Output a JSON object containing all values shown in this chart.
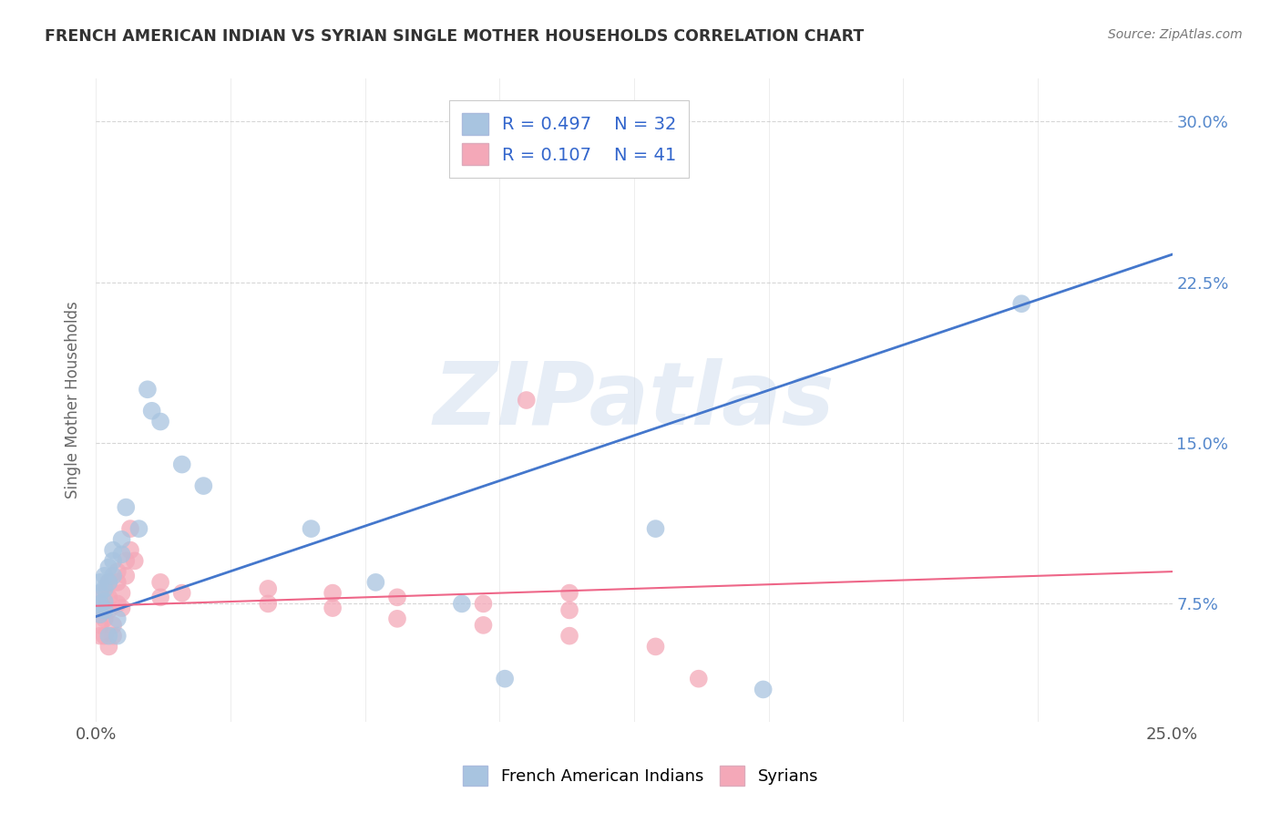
{
  "title": "FRENCH AMERICAN INDIAN VS SYRIAN SINGLE MOTHER HOUSEHOLDS CORRELATION CHART",
  "source": "Source: ZipAtlas.com",
  "xlim": [
    0.0,
    0.25
  ],
  "ylim": [
    0.02,
    0.32
  ],
  "watermark": "ZIPatlas",
  "legend_label1": "French American Indians",
  "legend_label2": "Syrians",
  "legend_R1": "R = 0.497",
  "legend_N1": "N = 32",
  "legend_R2": "R = 0.107",
  "legend_N2": "N = 41",
  "blue_color": "#A8C4E0",
  "pink_color": "#F4A8B8",
  "blue_line_color": "#4477CC",
  "pink_line_color": "#EE6688",
  "blue_scatter": [
    [
      0.001,
      0.085
    ],
    [
      0.001,
      0.08
    ],
    [
      0.001,
      0.075
    ],
    [
      0.001,
      0.07
    ],
    [
      0.002,
      0.088
    ],
    [
      0.002,
      0.082
    ],
    [
      0.002,
      0.076
    ],
    [
      0.002,
      0.072
    ],
    [
      0.003,
      0.092
    ],
    [
      0.003,
      0.085
    ],
    [
      0.003,
      0.06
    ],
    [
      0.004,
      0.1
    ],
    [
      0.004,
      0.095
    ],
    [
      0.004,
      0.088
    ],
    [
      0.005,
      0.068
    ],
    [
      0.005,
      0.06
    ],
    [
      0.006,
      0.105
    ],
    [
      0.006,
      0.098
    ],
    [
      0.007,
      0.12
    ],
    [
      0.01,
      0.11
    ],
    [
      0.012,
      0.175
    ],
    [
      0.013,
      0.165
    ],
    [
      0.015,
      0.16
    ],
    [
      0.02,
      0.14
    ],
    [
      0.025,
      0.13
    ],
    [
      0.05,
      0.11
    ],
    [
      0.065,
      0.085
    ],
    [
      0.085,
      0.075
    ],
    [
      0.095,
      0.04
    ],
    [
      0.13,
      0.11
    ],
    [
      0.155,
      0.035
    ],
    [
      0.215,
      0.215
    ]
  ],
  "pink_scatter": [
    [
      0.001,
      0.075
    ],
    [
      0.001,
      0.07
    ],
    [
      0.001,
      0.065
    ],
    [
      0.001,
      0.06
    ],
    [
      0.002,
      0.08
    ],
    [
      0.002,
      0.073
    ],
    [
      0.002,
      0.068
    ],
    [
      0.002,
      0.06
    ],
    [
      0.003,
      0.085
    ],
    [
      0.003,
      0.078
    ],
    [
      0.003,
      0.072
    ],
    [
      0.003,
      0.055
    ],
    [
      0.004,
      0.065
    ],
    [
      0.004,
      0.06
    ],
    [
      0.005,
      0.09
    ],
    [
      0.005,
      0.085
    ],
    [
      0.005,
      0.075
    ],
    [
      0.006,
      0.08
    ],
    [
      0.006,
      0.073
    ],
    [
      0.007,
      0.095
    ],
    [
      0.007,
      0.088
    ],
    [
      0.008,
      0.11
    ],
    [
      0.008,
      0.1
    ],
    [
      0.009,
      0.095
    ],
    [
      0.015,
      0.085
    ],
    [
      0.015,
      0.078
    ],
    [
      0.02,
      0.08
    ],
    [
      0.04,
      0.082
    ],
    [
      0.04,
      0.075
    ],
    [
      0.055,
      0.08
    ],
    [
      0.055,
      0.073
    ],
    [
      0.07,
      0.078
    ],
    [
      0.07,
      0.068
    ],
    [
      0.09,
      0.075
    ],
    [
      0.09,
      0.065
    ],
    [
      0.1,
      0.17
    ],
    [
      0.11,
      0.08
    ],
    [
      0.11,
      0.072
    ],
    [
      0.11,
      0.06
    ],
    [
      0.13,
      0.055
    ],
    [
      0.14,
      0.04
    ]
  ],
  "blue_line": [
    [
      0.0,
      0.069
    ],
    [
      0.25,
      0.238
    ]
  ],
  "pink_line": [
    [
      0.0,
      0.074
    ],
    [
      0.25,
      0.09
    ]
  ],
  "xtick_positions": [
    0.0,
    0.25
  ],
  "xtick_labels": [
    "0.0%",
    "25.0%"
  ],
  "ytick_vals": [
    0.075,
    0.15,
    0.225,
    0.3
  ],
  "ytick_labels": [
    "7.5%",
    "15.0%",
    "22.5%",
    "30.0%"
  ],
  "grid_ytick_vals": [
    0.075,
    0.15,
    0.225,
    0.3
  ],
  "grid_xtick_vals": [
    0.0,
    0.03125,
    0.0625,
    0.09375,
    0.125,
    0.15625,
    0.1875,
    0.21875,
    0.25
  ]
}
